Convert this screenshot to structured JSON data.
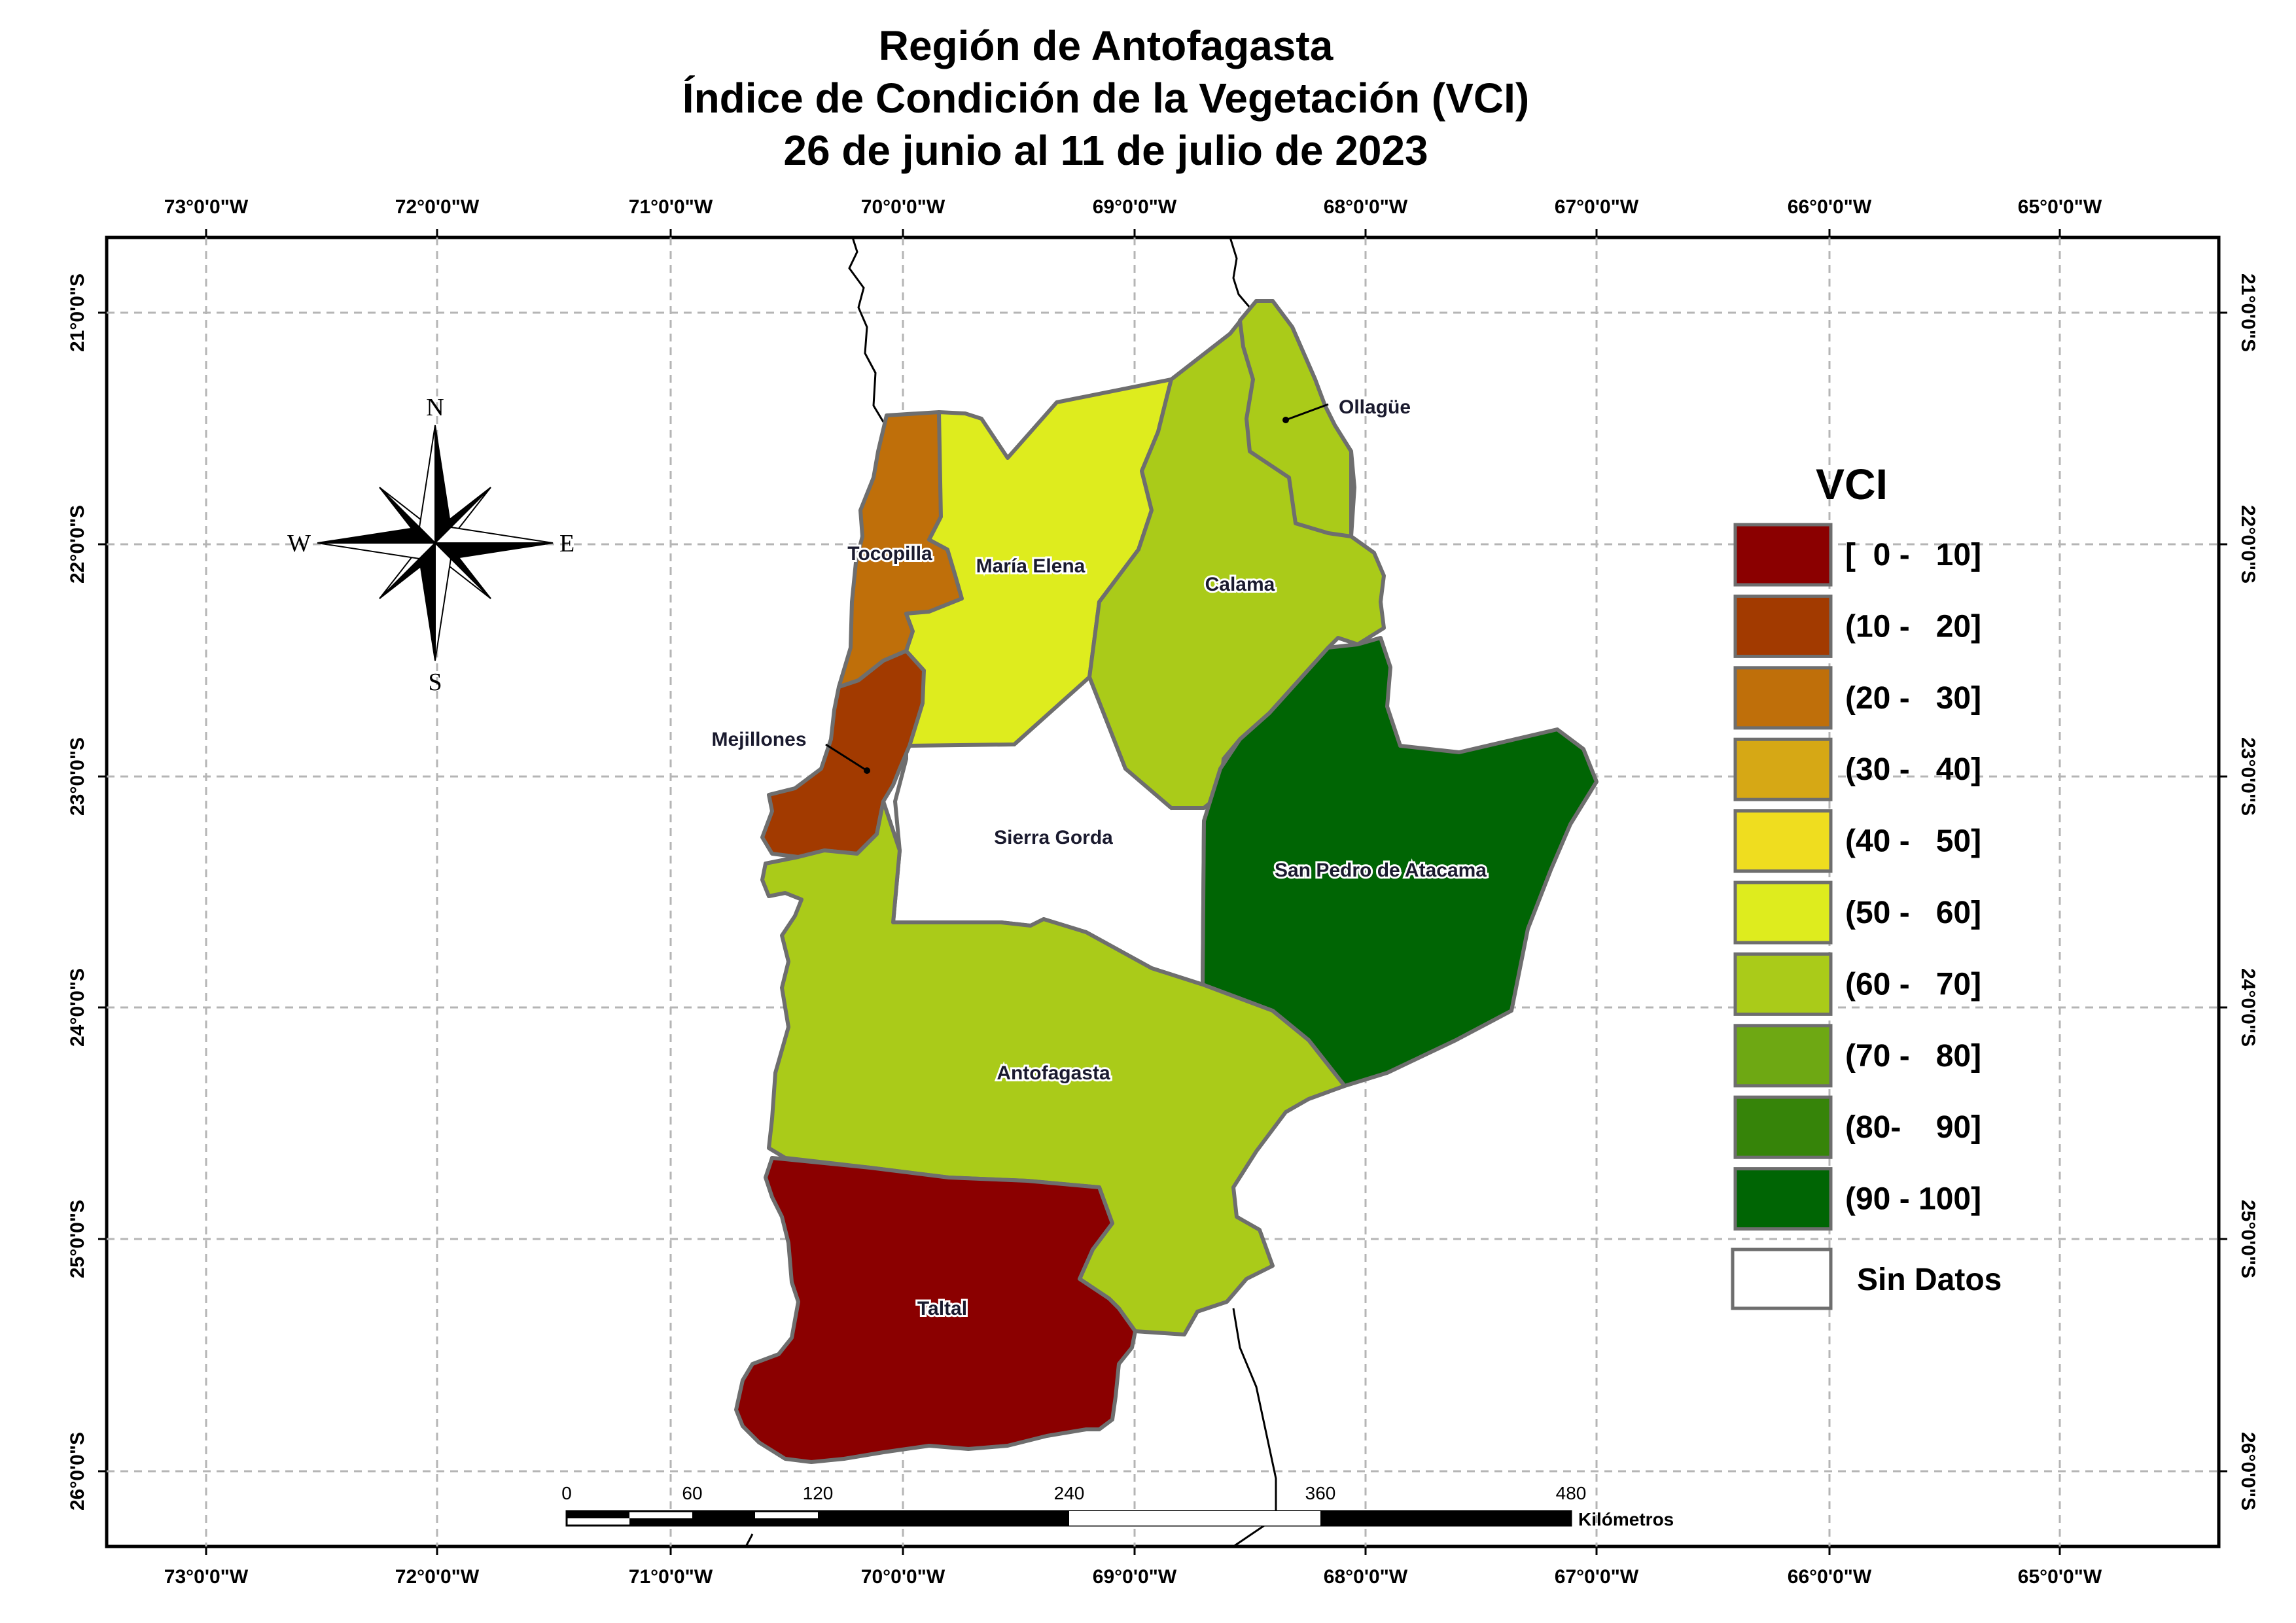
{
  "title": {
    "line1": "Región de Antofagasta",
    "line2": "Índice de Condición de la Vegetación (VCI)",
    "line3": "26 de junio al 11 de julio de 2023"
  },
  "axes": {
    "lon_labels": [
      "73°0'0\"W",
      "72°0'0\"W",
      "71°0'0\"W",
      "70°0'0\"W",
      "69°0'0\"W",
      "68°0'0\"W",
      "67°0'0\"W",
      "66°0'0\"W",
      "65°0'0\"W"
    ],
    "lat_labels": [
      "21°0'0\"S",
      "22°0'0\"S",
      "23°0'0\"S",
      "24°0'0\"S",
      "25°0'0\"S",
      "26°0'0\"S"
    ]
  },
  "compass": {
    "n": "N",
    "s": "S",
    "e": "E",
    "w": "W"
  },
  "communes": {
    "ollague": "Ollagüe",
    "tocopilla": "Tocopilla",
    "maria_elena": "María Elena",
    "calama": "Calama",
    "mejillones": "Mejillones",
    "sierra_gorda": "Sierra Gorda",
    "san_pedro": "San Pedro de Atacama",
    "antofagasta": "Antofagasta",
    "taltal": "Taltal"
  },
  "legend": {
    "title": "VCI",
    "classes": [
      {
        "label": "[  0 -   10]",
        "color": "#8b0000"
      },
      {
        "label": "(10 -   20]",
        "color": "#a23a00"
      },
      {
        "label": "(20 -   30]",
        "color": "#bf6f0a"
      },
      {
        "label": "(30 -   40]",
        "color": "#d6a815"
      },
      {
        "label": "(40 -   50]",
        "color": "#efdd1f"
      },
      {
        "label": "(50 -   60]",
        "color": "#deec1e"
      },
      {
        "label": "(60 -   70]",
        "color": "#aacb19"
      },
      {
        "label": "(70 -   80]",
        "color": "#6ea813"
      },
      {
        "label": "(80-    90]",
        "color": "#368409"
      },
      {
        "label": "(90 - 100]",
        "color": "#006504"
      }
    ],
    "no_data": {
      "label": "Sin Datos",
      "color": "#ffffff"
    }
  },
  "scale_bar": {
    "ticks": [
      "0",
      "60",
      "120",
      "240",
      "360",
      "480"
    ],
    "unit": "Kilómetros"
  }
}
